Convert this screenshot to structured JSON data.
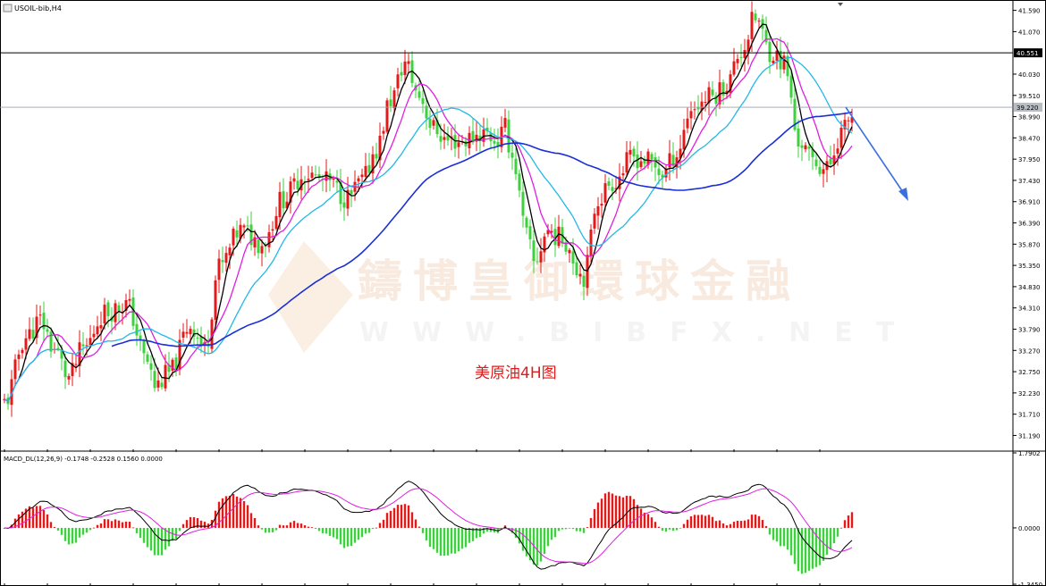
{
  "header": {
    "symbol": "USOIL-bib,H4"
  },
  "watermark": {
    "brand": "鑄博皇御環球金融",
    "url": "WWW.BIBFX.NET"
  },
  "annotation": {
    "text": "美原油4H图"
  },
  "colors": {
    "bull": "#e31a1a",
    "bear": "#3ed13e",
    "ma_fast": "#000000",
    "ma_mid": "#e01ee0",
    "ma_slow": "#22b8e8",
    "ma_long": "#1a2fd6",
    "arrow": "#3a6fe0",
    "annotation": "#e31a1a"
  },
  "chart_data": [
    {
      "type": "candlestick",
      "title": "USOIL-bib,H4",
      "price_axis": {
        "range": [
          30.85,
          41.8
        ],
        "ticks": [
          "41.590",
          "41.070",
          "40.030",
          "39.510",
          "38.990",
          "38.470",
          "37.950",
          "37.430",
          "36.910",
          "36.390",
          "35.870",
          "35.350",
          "34.830",
          "34.310",
          "33.790",
          "33.270",
          "32.750",
          "32.230",
          "31.710",
          "31.190"
        ]
      },
      "horizontal_lines": [
        {
          "value": 40.551,
          "label": "40.551",
          "style": "solid"
        },
        {
          "value": 39.22,
          "label": "39.220",
          "style": "current"
        }
      ],
      "anchors": [
        [
          0,
          32.0
        ],
        [
          6,
          33.6
        ],
        [
          10,
          34.0
        ],
        [
          14,
          33.3
        ],
        [
          18,
          32.6
        ],
        [
          22,
          33.3
        ],
        [
          28,
          34.2
        ],
        [
          34,
          34.4
        ],
        [
          40,
          33.0
        ],
        [
          42,
          32.4
        ],
        [
          46,
          32.7
        ],
        [
          52,
          33.9
        ],
        [
          56,
          33.3
        ],
        [
          60,
          35.3
        ],
        [
          66,
          36.2
        ],
        [
          72,
          35.9
        ],
        [
          78,
          37.0
        ],
        [
          84,
          37.6
        ],
        [
          90,
          37.4
        ],
        [
          96,
          37.0
        ],
        [
          100,
          37.4
        ],
        [
          104,
          38.2
        ],
        [
          108,
          39.4
        ],
        [
          112,
          40.3
        ],
        [
          116,
          39.5
        ],
        [
          120,
          38.7
        ],
        [
          124,
          38.4
        ],
        [
          128,
          38.4
        ],
        [
          134,
          38.6
        ],
        [
          138,
          38.4
        ],
        [
          140,
          38.7
        ],
        [
          142,
          38.0
        ],
        [
          146,
          36.1
        ],
        [
          148,
          35.4
        ],
        [
          152,
          36.2
        ],
        [
          156,
          36.0
        ],
        [
          162,
          35.1
        ],
        [
          166,
          37.0
        ],
        [
          170,
          37.4
        ],
        [
          176,
          38.0
        ],
        [
          180,
          37.9
        ],
        [
          184,
          37.6
        ],
        [
          188,
          38.1
        ],
        [
          192,
          39.2
        ],
        [
          198,
          39.5
        ],
        [
          202,
          39.8
        ],
        [
          206,
          40.6
        ],
        [
          210,
          41.4
        ],
        [
          214,
          40.6
        ],
        [
          218,
          40.3
        ],
        [
          222,
          38.4
        ],
        [
          226,
          37.9
        ],
        [
          230,
          37.7
        ],
        [
          234,
          38.6
        ],
        [
          237,
          39.0
        ]
      ],
      "moving_averages": [
        {
          "color": "#000000",
          "period": 5
        },
        {
          "color": "#e01ee0",
          "period": 10
        },
        {
          "color": "#22b8e8",
          "period": 21
        },
        {
          "color": "#1a2fd6",
          "period": 60
        }
      ]
    },
    {
      "type": "bar",
      "title": "MACD_DL(12,26,9) -0.1748 -0.2528 0.1560 0.0000",
      "y_axis": {
        "range": [
          -1.345,
          1.7902
        ],
        "ticks": [
          "1.7902",
          "0.0000",
          "-1.3450"
        ]
      },
      "series": [
        {
          "name": "MACD",
          "values": []
        },
        {
          "name": "Signal",
          "values": []
        },
        {
          "name": "Histogram",
          "values": []
        }
      ]
    }
  ]
}
